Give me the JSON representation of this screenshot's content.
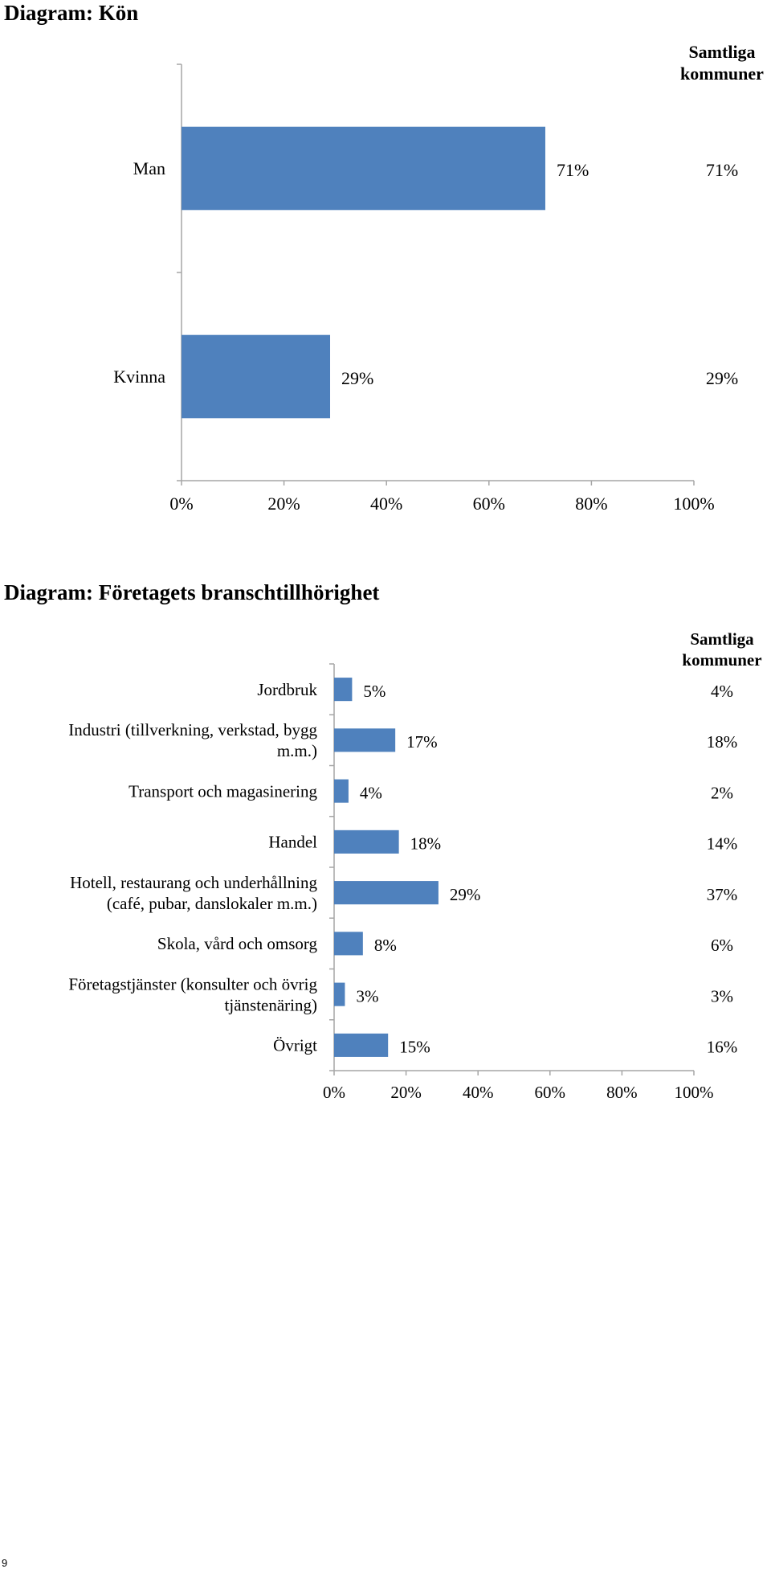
{
  "page": {
    "number": "9"
  },
  "colors": {
    "bar": "#4f81bd",
    "axis": "#a6a6a6"
  },
  "chart_data": [
    {
      "type": "bar",
      "orientation": "horizontal",
      "title": "Diagram: Kön",
      "categories": [
        "Man",
        "Kvinna"
      ],
      "values": [
        71,
        29
      ],
      "value_labels": [
        "71%",
        "29%"
      ],
      "comparison_header": [
        "Samtliga",
        "kommuner"
      ],
      "comparison_values": [
        "71%",
        "29%"
      ],
      "xlim": [
        0,
        100
      ],
      "x_ticks": [
        "0%",
        "20%",
        "40%",
        "60%",
        "80%",
        "100%"
      ],
      "grid": false
    },
    {
      "type": "bar",
      "orientation": "horizontal",
      "title": "Diagram: Företagets branschtillhörighet",
      "categories": [
        [
          "Jordbruk"
        ],
        [
          "Industri (tillverkning, verkstad, bygg",
          "m.m.)"
        ],
        [
          "Transport och magasinering"
        ],
        [
          "Handel"
        ],
        [
          "Hotell, restaurang och underhållning",
          "(café, pubar, danslokaler m.m.)"
        ],
        [
          "Skola, vård och omsorg"
        ],
        [
          "Företagstjänster (konsulter och övrig",
          "tjänstenäring)"
        ],
        [
          "Övrigt"
        ]
      ],
      "values": [
        5,
        17,
        4,
        18,
        29,
        8,
        3,
        15
      ],
      "value_labels": [
        "5%",
        "17%",
        "4%",
        "18%",
        "29%",
        "8%",
        "3%",
        "15%"
      ],
      "comparison_header": [
        "Samtliga",
        "kommuner"
      ],
      "comparison_values": [
        "4%",
        "18%",
        "2%",
        "14%",
        "37%",
        "6%",
        "3%",
        "16%"
      ],
      "xlim": [
        0,
        100
      ],
      "x_ticks": [
        "0%",
        "20%",
        "40%",
        "60%",
        "80%",
        "100%"
      ],
      "grid": false
    }
  ]
}
